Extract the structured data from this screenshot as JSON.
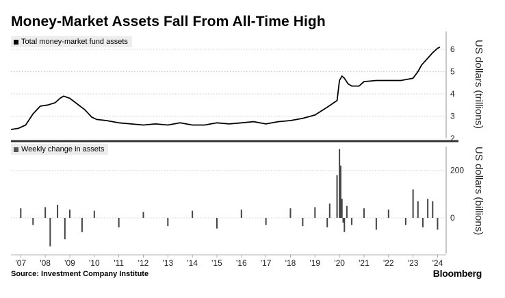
{
  "title": "Money-Market Assets Fall From All-Time High",
  "source": "Source: Investment Company Institute",
  "brand": "Bloomberg",
  "colors": {
    "line": "#000000",
    "bars": "#444444",
    "grid": "#bbbbbb",
    "divider": "#333333",
    "legend_bg": "#ededed"
  },
  "chart_data": [
    {
      "type": "line",
      "legend": "Total money-market fund assets",
      "ylabel": "US dollars (trillions)",
      "ylim": [
        2,
        6.8
      ],
      "yticks": [
        "2",
        "3",
        "4",
        "5",
        "6"
      ],
      "x": [
        2006.6,
        2006.9,
        2007.2,
        2007.5,
        2007.8,
        2008.1,
        2008.4,
        2008.6,
        2008.75,
        2009.0,
        2009.3,
        2009.6,
        2009.9,
        2010.1,
        2010.5,
        2011.0,
        2011.5,
        2012.0,
        2012.5,
        2013.0,
        2013.5,
        2014.0,
        2014.5,
        2015.0,
        2015.5,
        2016.0,
        2016.5,
        2017.0,
        2017.5,
        2018.0,
        2018.5,
        2019.0,
        2019.5,
        2019.9,
        2020.0,
        2020.1,
        2020.2,
        2020.35,
        2020.5,
        2020.8,
        2021.0,
        2021.5,
        2022.0,
        2022.5,
        2023.0,
        2023.2,
        2023.35,
        2023.6,
        2023.8,
        2024.0,
        2024.1
      ],
      "y": [
        2.4,
        2.45,
        2.6,
        3.1,
        3.45,
        3.5,
        3.6,
        3.8,
        3.9,
        3.8,
        3.55,
        3.3,
        2.95,
        2.85,
        2.8,
        2.7,
        2.65,
        2.6,
        2.65,
        2.6,
        2.7,
        2.6,
        2.6,
        2.7,
        2.65,
        2.7,
        2.75,
        2.65,
        2.75,
        2.8,
        2.9,
        3.05,
        3.4,
        3.7,
        4.6,
        4.8,
        4.7,
        4.45,
        4.35,
        4.35,
        4.55,
        4.6,
        4.6,
        4.6,
        4.7,
        5.0,
        5.3,
        5.6,
        5.85,
        6.05,
        6.1
      ]
    },
    {
      "type": "bar",
      "legend": "Weekly change in assets",
      "ylabel": "US dollars (billions)",
      "ylim": [
        -150,
        300
      ],
      "yticks": [
        "0",
        "200"
      ],
      "x": [
        2007.0,
        2007.5,
        2008.0,
        2008.2,
        2008.5,
        2008.8,
        2009.0,
        2009.5,
        2010.0,
        2011.0,
        2012.0,
        2013.0,
        2014.0,
        2015.0,
        2016.0,
        2017.0,
        2018.0,
        2018.5,
        2019.0,
        2019.5,
        2019.6,
        2019.9,
        2020.0,
        2020.05,
        2020.1,
        2020.15,
        2020.2,
        2020.3,
        2020.5,
        2021.0,
        2021.5,
        2022.0,
        2022.7,
        2023.0,
        2023.2,
        2023.4,
        2023.6,
        2023.8,
        2024.0
      ],
      "values": [
        40,
        -30,
        45,
        -120,
        55,
        -90,
        35,
        -60,
        30,
        -40,
        25,
        -35,
        30,
        -45,
        35,
        -30,
        40,
        -35,
        45,
        -40,
        60,
        180,
        290,
        220,
        80,
        -20,
        -60,
        50,
        -30,
        40,
        -50,
        35,
        -30,
        120,
        70,
        -40,
        80,
        70,
        -50
      ]
    }
  ],
  "x_ticks": [
    "'07",
    "'08",
    "'09",
    "'10",
    "'11",
    "'12",
    "'13",
    "'14",
    "'15",
    "'16",
    "'17",
    "'18",
    "'19",
    "'20",
    "'21",
    "'22",
    "'23",
    "'24"
  ]
}
